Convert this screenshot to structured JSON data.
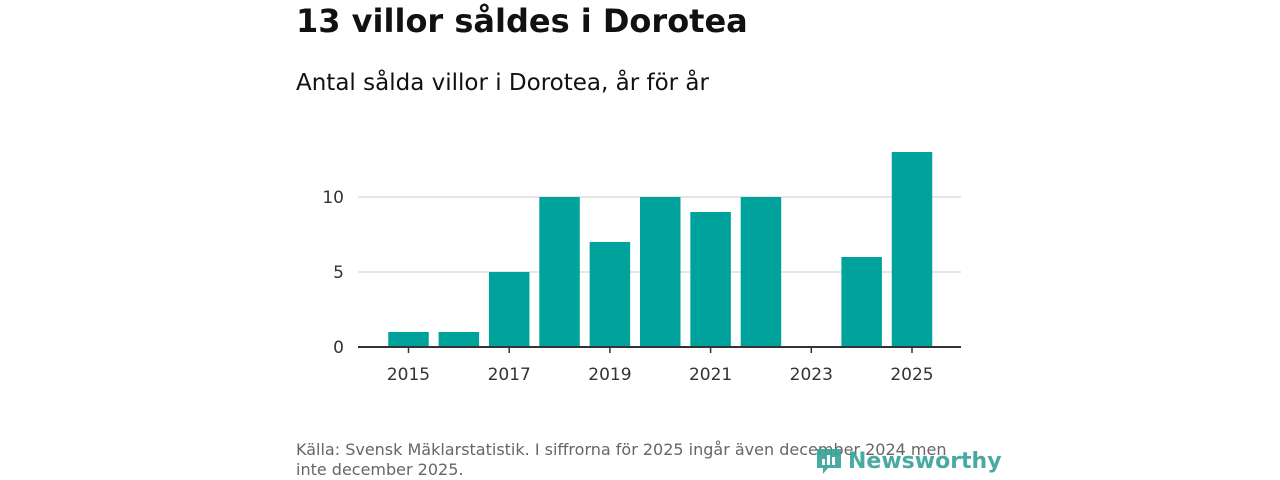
{
  "header": {
    "title": "13 villor såldes i Dorotea",
    "subtitle": "Antal sålda villor i Dorotea, år för år"
  },
  "chart_data": {
    "type": "bar",
    "x": [
      2015,
      2016,
      2017,
      2018,
      2019,
      2020,
      2021,
      2022,
      2023,
      2024,
      2025
    ],
    "values": [
      1,
      1,
      5,
      10,
      7,
      10,
      9,
      10,
      0,
      6,
      13
    ],
    "x_tick_labels": [
      "2015",
      "2017",
      "2019",
      "2021",
      "2023",
      "2025"
    ],
    "y_ticks": [
      0,
      5,
      10
    ],
    "y_tick_labels": [
      "0",
      "5",
      "10"
    ],
    "ylim": [
      0,
      13
    ],
    "grid": true,
    "bar_color": "#00a39b"
  },
  "footer": {
    "source": "Källa: Svensk Mäklarstatistik. I siffrorna för 2025 ingår även december 2024 men inte december 2025.",
    "logo_text": "Newsworthy",
    "logo_color": "#3aa39b"
  }
}
